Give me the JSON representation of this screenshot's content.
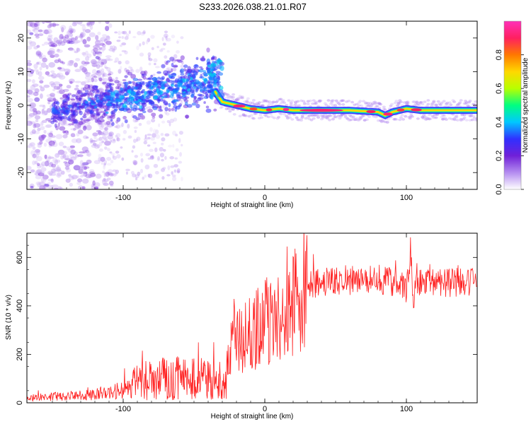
{
  "title": "S233.2026.038.21.01.R07",
  "chart_data": [
    {
      "type": "heatmap",
      "xlabel": "Height of straight line (km)",
      "ylabel": "Frequency (Hz)",
      "xlim": [
        -168,
        150
      ],
      "ylim": [
        -25,
        25
      ],
      "xticks": [
        -100,
        0,
        100
      ],
      "xtick_labels": [
        "-100",
        "0",
        "100"
      ],
      "yticks": [
        20,
        10,
        0,
        -10,
        -20
      ],
      "ytick_labels": [
        "20",
        "10",
        "0",
        "-10",
        "-20"
      ],
      "ridge": {
        "x": [
          -35,
          -30,
          -20,
          -10,
          0,
          10,
          20,
          40,
          60,
          80,
          85,
          90,
          100,
          110,
          130,
          150
        ],
        "y": [
          4,
          1,
          0,
          -1,
          -1.5,
          -1,
          -1.5,
          -1.5,
          -1.5,
          -2,
          -3,
          -2,
          -1,
          -1.5,
          -1.5,
          -1.5
        ]
      },
      "colorbar": {
        "label": "Normalized spectral amplitude",
        "ticks": [
          "0.0",
          "0.2",
          "0.4",
          "0.6",
          "0.8"
        ],
        "range": [
          0,
          1
        ],
        "colors": [
          "#ffffff",
          "#b48cf0",
          "#7020d8",
          "#3030ff",
          "#00c8ff",
          "#00ff80",
          "#b8ff00",
          "#ffd800",
          "#ff7800",
          "#ff2060",
          "#ff30b8"
        ]
      }
    },
    {
      "type": "line",
      "xlabel": "Height of straight line (km)",
      "ylabel": "SNR (10 * v/v)",
      "xlim": [
        -168,
        150
      ],
      "ylim": [
        0,
        700
      ],
      "xticks": [
        -100,
        0,
        100
      ],
      "xtick_labels": [
        "-100",
        "0",
        "100"
      ],
      "yticks": [
        0,
        200,
        400,
        600
      ],
      "ytick_labels": [
        "0",
        "200",
        "400",
        "600"
      ],
      "color": "#ff2020",
      "series": [
        {
          "name": "SNR",
          "x": [
            -168,
            -150,
            -130,
            -110,
            -100,
            -90,
            -80,
            -70,
            -60,
            -50,
            -40,
            -30,
            -25,
            -22,
            -20,
            -15,
            -10,
            -5,
            0,
            10,
            20,
            25,
            30,
            40,
            60,
            80,
            95,
            100,
            103,
            105,
            107,
            110,
            120,
            130,
            140,
            150
          ],
          "y": [
            20,
            25,
            30,
            40,
            55,
            90,
            95,
            100,
            110,
            100,
            95,
            90,
            140,
            380,
            250,
            260,
            290,
            310,
            330,
            360,
            400,
            450,
            480,
            500,
            505,
            510,
            490,
            470,
            620,
            400,
            520,
            490,
            500,
            495,
            500,
            500
          ]
        }
      ]
    }
  ]
}
